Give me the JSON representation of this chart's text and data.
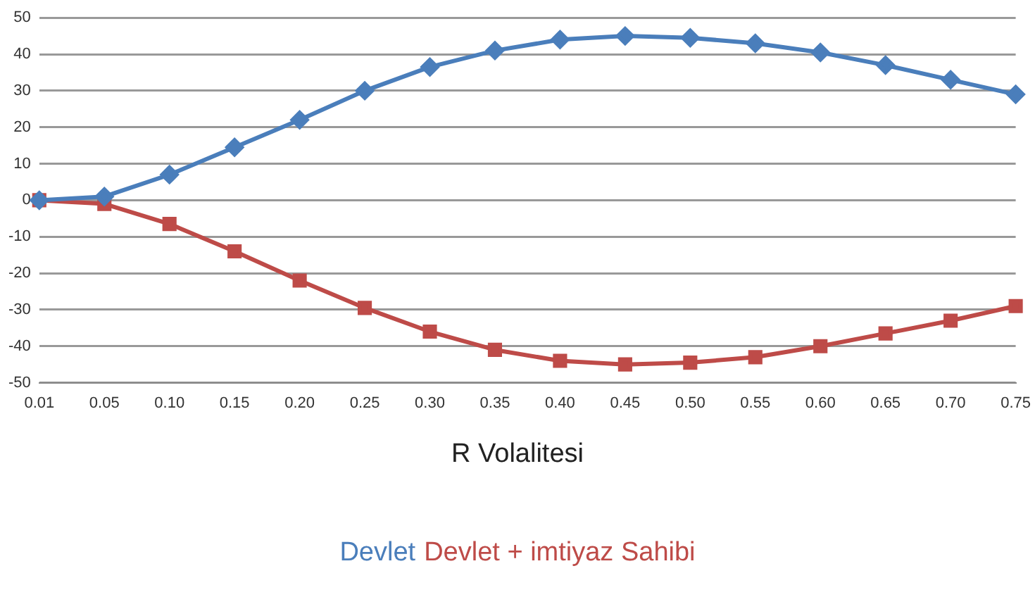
{
  "chart_data": {
    "type": "line",
    "xlabel": "R Volalitesi",
    "categories": [
      "0.01",
      "0.05",
      "0.10",
      "0.15",
      "0.20",
      "0.25",
      "0.30",
      "0.35",
      "0.40",
      "0.45",
      "0.50",
      "0.55",
      "0.60",
      "0.65",
      "0.70",
      "0.75"
    ],
    "series": [
      {
        "name": "Devlet",
        "color": "#4a7ebb",
        "marker": "diamond",
        "values": [
          0,
          1,
          7,
          14.5,
          22,
          30,
          36.5,
          41,
          44,
          45,
          44.5,
          43,
          40.5,
          37,
          33,
          29
        ]
      },
      {
        "name": "Devlet + imtiyaz Sahibi",
        "color": "#be4b48",
        "marker": "square",
        "values": [
          0,
          -1,
          -6.5,
          -14,
          -22,
          -29.5,
          -36,
          -41,
          -44,
          -45,
          -44.5,
          -43,
          -40,
          -36.5,
          -33,
          -29
        ]
      }
    ],
    "ylim": [
      -50,
      50
    ],
    "yticks": [
      -50,
      -40,
      -30,
      -20,
      -10,
      0,
      10,
      20,
      30,
      40,
      50
    ],
    "grid": "y",
    "legend": "bottom"
  }
}
